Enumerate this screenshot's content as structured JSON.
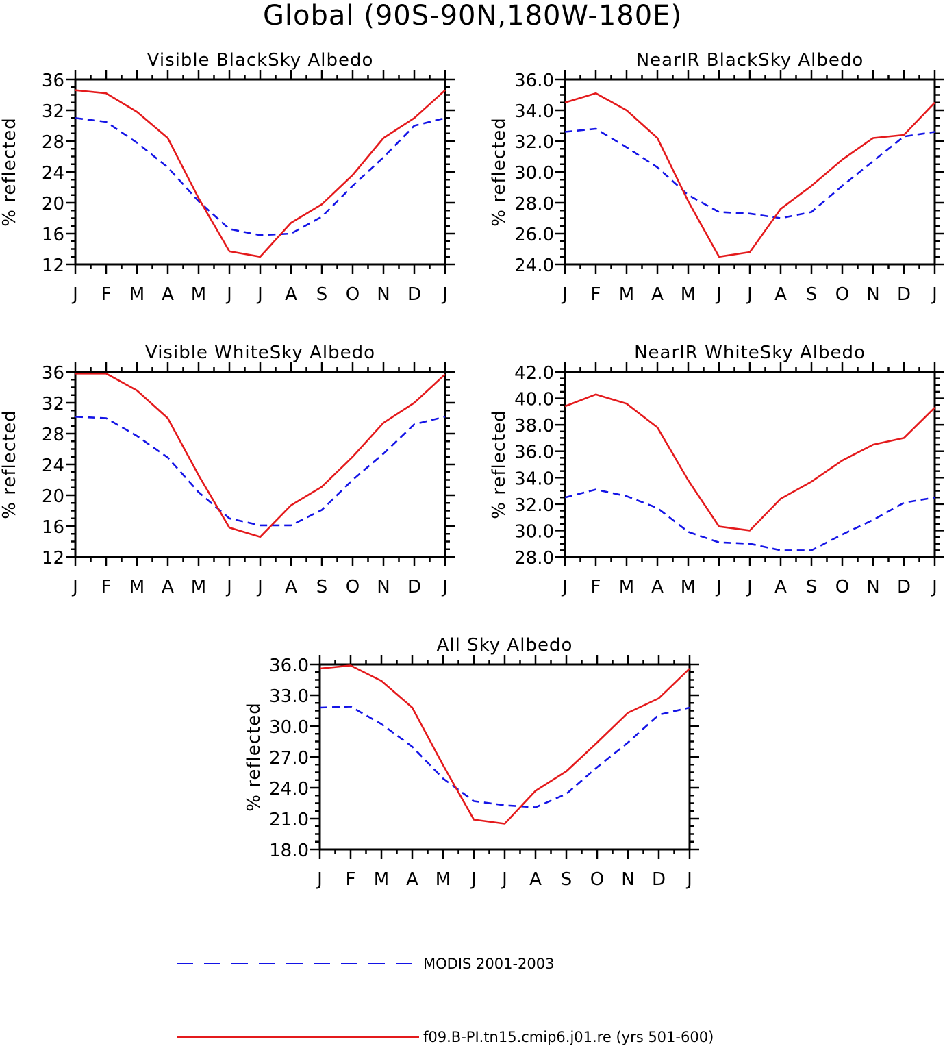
{
  "title": "Global (90S-90N,180W-180E)",
  "colors": {
    "model": "#e41a1c",
    "obs": "#1414e6"
  },
  "chart_data": [
    {
      "type": "line",
      "title": "Visible BlackSky Albedo",
      "ylabel": "% reflected",
      "categories": [
        "J",
        "F",
        "M",
        "A",
        "M",
        "J",
        "J",
        "A",
        "S",
        "O",
        "N",
        "D",
        "J"
      ],
      "ylim": [
        12,
        36
      ],
      "yticks": [
        12,
        16,
        20,
        24,
        28,
        32,
        36
      ],
      "ytick_labels": [
        "12",
        "16",
        "20",
        "24",
        "28",
        "32",
        "36"
      ],
      "series": [
        {
          "name": "MODIS 2001-2003",
          "style": "dashed",
          "color": "#1414e6",
          "values": [
            31.0,
            30.5,
            27.8,
            24.6,
            20.2,
            16.6,
            15.8,
            16.0,
            18.2,
            22.2,
            25.9,
            30.0,
            31.0
          ]
        },
        {
          "name": "f09.B-PI.tn15.cmip6.j01.re (yrs 501-600)",
          "style": "solid",
          "color": "#e41a1c",
          "values": [
            34.6,
            34.2,
            31.8,
            28.4,
            20.6,
            13.7,
            13.0,
            17.4,
            19.8,
            23.6,
            28.4,
            31.0,
            34.6
          ]
        }
      ]
    },
    {
      "type": "line",
      "title": "NearIR BlackSky Albedo",
      "ylabel": "% reflected",
      "categories": [
        "J",
        "F",
        "M",
        "A",
        "M",
        "J",
        "J",
        "A",
        "S",
        "O",
        "N",
        "D",
        "J"
      ],
      "ylim": [
        24,
        36
      ],
      "yticks": [
        24,
        26,
        28,
        30,
        32,
        34,
        36
      ],
      "ytick_labels": [
        "24.0",
        "26.0",
        "28.0",
        "30.0",
        "32.0",
        "34.0",
        "36.0"
      ],
      "series": [
        {
          "name": "MODIS 2001-2003",
          "style": "dashed",
          "color": "#1414e6",
          "values": [
            32.6,
            32.8,
            31.6,
            30.3,
            28.5,
            27.4,
            27.3,
            27.0,
            27.4,
            29.1,
            30.7,
            32.3,
            32.6
          ]
        },
        {
          "name": "f09.B-PI.tn15.cmip6.j01.re (yrs 501-600)",
          "style": "solid",
          "color": "#e41a1c",
          "values": [
            34.5,
            35.1,
            34.0,
            32.2,
            28.1,
            24.5,
            24.8,
            27.6,
            29.1,
            30.8,
            32.2,
            32.4,
            34.5
          ]
        }
      ]
    },
    {
      "type": "line",
      "title": "Visible WhiteSky Albedo",
      "ylabel": "% reflected",
      "categories": [
        "J",
        "F",
        "M",
        "A",
        "M",
        "J",
        "J",
        "A",
        "S",
        "O",
        "N",
        "D",
        "J"
      ],
      "ylim": [
        12,
        36
      ],
      "yticks": [
        12,
        16,
        20,
        24,
        28,
        32,
        36
      ],
      "ytick_labels": [
        "12",
        "16",
        "20",
        "24",
        "28",
        "32",
        "36"
      ],
      "series": [
        {
          "name": "MODIS 2001-2003",
          "style": "dashed",
          "color": "#1414e6",
          "values": [
            30.2,
            30.0,
            27.7,
            24.9,
            20.4,
            17.0,
            16.1,
            16.1,
            18.1,
            22.0,
            25.4,
            29.2,
            30.2
          ]
        },
        {
          "name": "f09.B-PI.tn15.cmip6.j01.re (yrs 501-600)",
          "style": "solid",
          "color": "#e41a1c",
          "values": [
            35.8,
            35.8,
            33.6,
            30.0,
            22.6,
            15.8,
            14.6,
            18.7,
            21.1,
            25.0,
            29.4,
            32.0,
            35.7
          ]
        }
      ]
    },
    {
      "type": "line",
      "title": "NearIR WhiteSky Albedo",
      "ylabel": "% reflected",
      "categories": [
        "J",
        "F",
        "M",
        "A",
        "M",
        "J",
        "J",
        "A",
        "S",
        "O",
        "N",
        "D",
        "J"
      ],
      "ylim": [
        28,
        42
      ],
      "yticks": [
        28,
        30,
        32,
        34,
        36,
        38,
        40,
        42
      ],
      "ytick_labels": [
        "28.0",
        "30.0",
        "32.0",
        "34.0",
        "36.0",
        "38.0",
        "40.0",
        "42.0"
      ],
      "series": [
        {
          "name": "MODIS 2001-2003",
          "style": "dashed",
          "color": "#1414e6",
          "values": [
            32.5,
            33.1,
            32.6,
            31.7,
            29.9,
            29.1,
            29.0,
            28.5,
            28.5,
            29.7,
            30.8,
            32.1,
            32.5
          ]
        },
        {
          "name": "f09.B-PI.tn15.cmip6.j01.re (yrs 501-600)",
          "style": "solid",
          "color": "#e41a1c",
          "values": [
            39.4,
            40.3,
            39.6,
            37.8,
            33.8,
            30.3,
            30.0,
            32.4,
            33.7,
            35.3,
            36.5,
            37.0,
            39.3
          ]
        }
      ]
    },
    {
      "type": "line",
      "title": "All Sky Albedo",
      "ylabel": "% reflected",
      "categories": [
        "J",
        "F",
        "M",
        "A",
        "M",
        "J",
        "J",
        "A",
        "S",
        "O",
        "N",
        "D",
        "J"
      ],
      "ylim": [
        18,
        36
      ],
      "yticks": [
        18,
        21,
        24,
        27,
        30,
        33,
        36
      ],
      "ytick_labels": [
        "18.0",
        "21.0",
        "24.0",
        "27.0",
        "30.0",
        "33.0",
        "36.0"
      ],
      "series": [
        {
          "name": "MODIS 2001-2003",
          "style": "dashed",
          "color": "#1414e6",
          "values": [
            31.8,
            31.9,
            30.2,
            28.0,
            24.9,
            22.7,
            22.3,
            22.1,
            23.4,
            26.0,
            28.4,
            31.1,
            31.8
          ]
        },
        {
          "name": "f09.B-PI.tn15.cmip6.j01.re (yrs 501-600)",
          "style": "solid",
          "color": "#e41a1c",
          "values": [
            35.6,
            35.9,
            34.4,
            31.8,
            26.2,
            20.9,
            20.5,
            23.7,
            25.6,
            28.4,
            31.3,
            32.7,
            35.6
          ]
        }
      ]
    }
  ],
  "legend": {
    "obs_label": "MODIS 2001-2003",
    "model_label": "f09.B-PI.tn15.cmip6.j01.re (yrs 501-600)"
  }
}
